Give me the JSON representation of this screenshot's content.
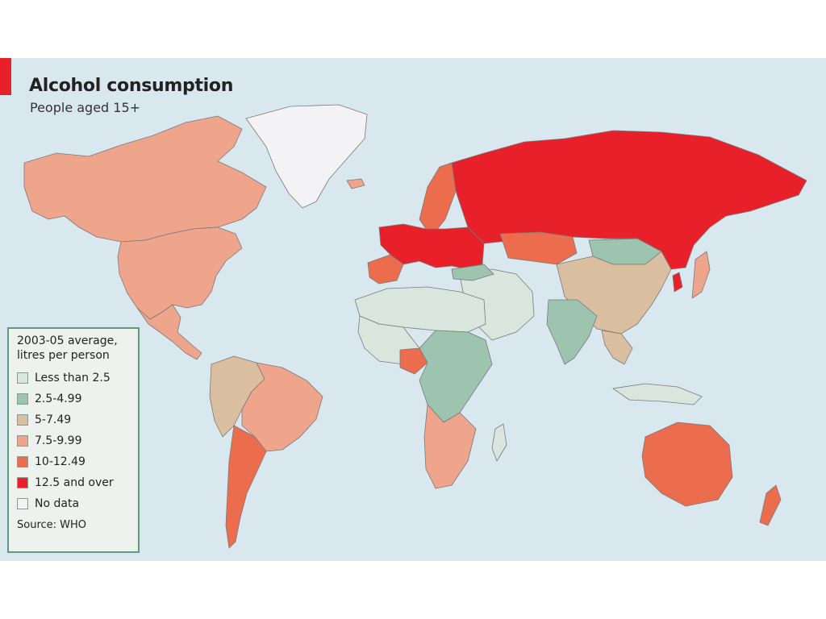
{
  "header": {
    "title": "Alcohol consumption",
    "subtitle": "People aged 15+"
  },
  "legend": {
    "title_line1": "2003-05 average,",
    "title_line2": "litres per person",
    "items": [
      {
        "label": "Less than 2.5",
        "color": "#d8e6de"
      },
      {
        "label": "2.5-4.99",
        "color": "#9cc4ae"
      },
      {
        "label": "5-7.49",
        "color": "#d9bfa0"
      },
      {
        "label": "7.5-9.99",
        "color": "#eea58c"
      },
      {
        "label": "10-12.49",
        "color": "#ec6c4e"
      },
      {
        "label": "12.5 and over",
        "color": "#e8202a"
      },
      {
        "label": "No data",
        "color": "#f3f3f6"
      }
    ],
    "source": "Source: WHO"
  },
  "colors": {
    "ocean": "#d9e8ee",
    "border": "#6e6e6e",
    "accent": "#e8202a"
  }
}
